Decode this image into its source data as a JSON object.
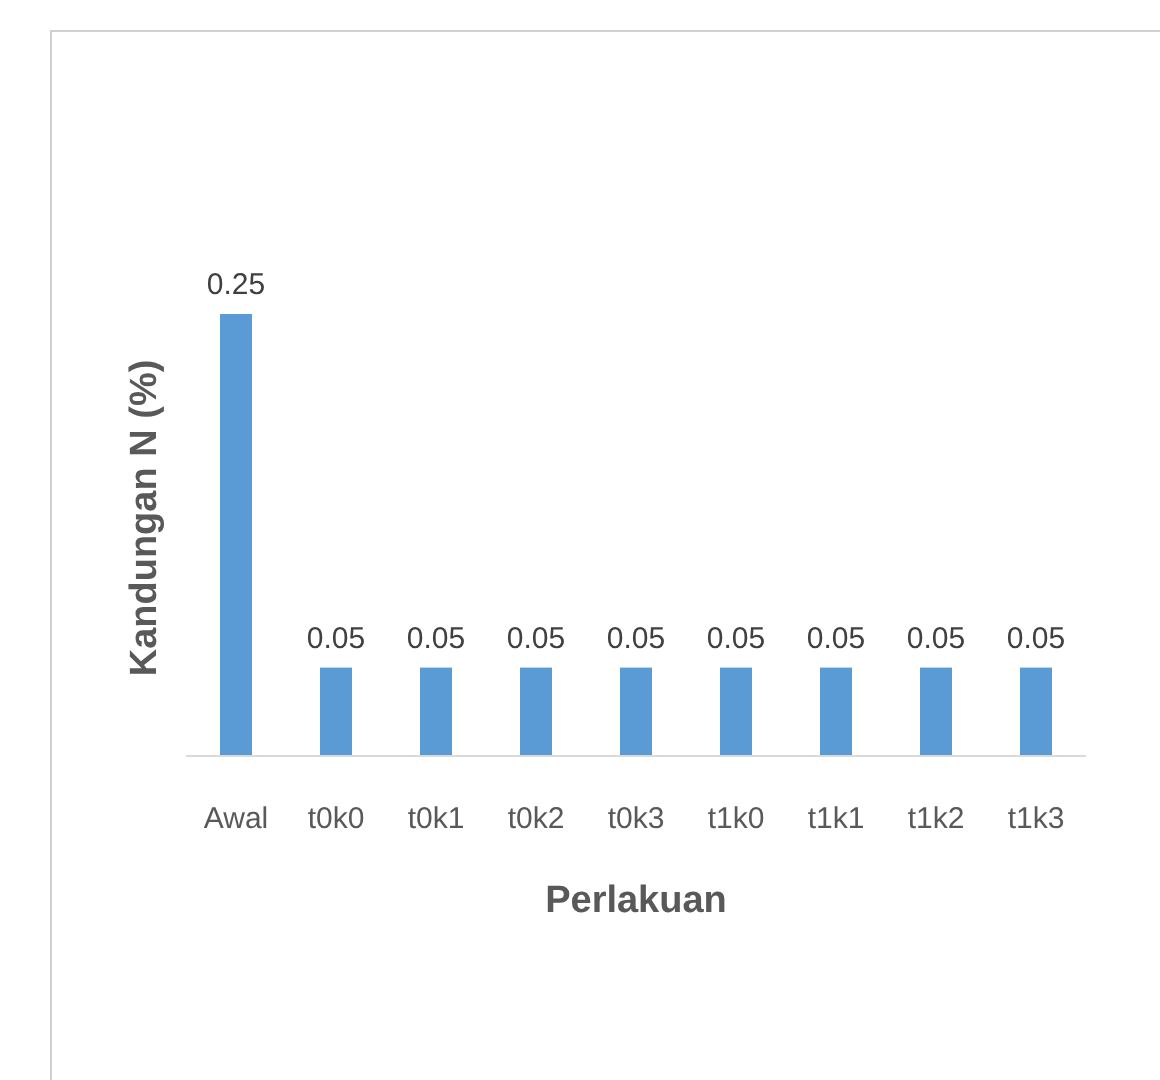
{
  "chart_data": {
    "type": "bar",
    "xlabel": "Perlakuan",
    "ylabel": "Kandungan N (%)",
    "categories": [
      "Awal",
      "t0k0",
      "t0k1",
      "t0k2",
      "t0k3",
      "t1k0",
      "t1k1",
      "t1k2",
      "t1k3"
    ],
    "values": [
      0.25,
      0.05,
      0.05,
      0.05,
      0.05,
      0.05,
      0.05,
      0.05,
      0.05
    ],
    "color": "#5b9bd5",
    "data_labels": true
  }
}
